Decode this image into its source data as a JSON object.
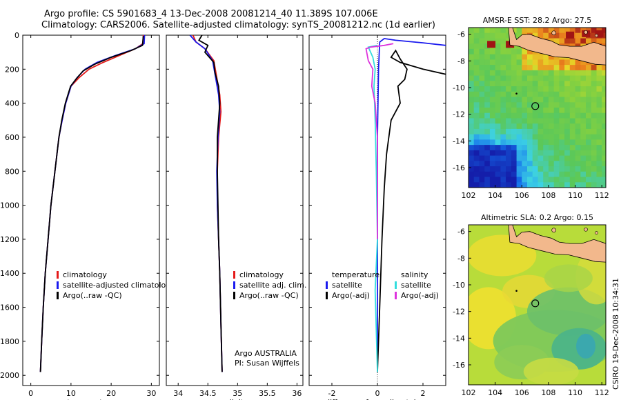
{
  "header": {
    "title_line1": "Argo profile: CS 5901683_4 13-Dec-2008 20081214_40 11.389S 107.006E",
    "title_line2": "Climatology: CARS2006. Satellite-adjusted climatology: synTS_20081212.nc (1d earlier)"
  },
  "footer": {
    "credit": "CSIRO 19-Dec-2008 10:34:31"
  },
  "colors": {
    "red": "#e41a1a",
    "blue": "#1a1aee",
    "black": "#000000",
    "cyan": "#33dddd",
    "magenta": "#dd33dd",
    "land": "#f2b88c"
  },
  "chart_data": [
    {
      "type": "line",
      "xlabel": "temperature",
      "xlim": [
        -2,
        32
      ],
      "xticks": [
        0,
        10,
        20,
        30
      ],
      "ylim": [
        0,
        2060
      ],
      "yticks": [
        0,
        200,
        400,
        600,
        800,
        1000,
        1200,
        1400,
        1600,
        1800,
        2000
      ],
      "y_reversed": true,
      "legend": [
        "climatology",
        "satellite-adjusted climatology",
        "Argo(..raw -QC)"
      ],
      "series": [
        {
          "name": "climatology",
          "color": "red",
          "x": [
            28.0,
            27.9,
            26.0,
            22.0,
            18.0,
            14.5,
            12.0,
            10.0,
            8.7,
            7.8,
            7.0,
            6.0,
            5.0,
            4.3,
            3.6,
            3.1,
            2.7,
            2.4
          ],
          "y": [
            0,
            50,
            80,
            120,
            160,
            200,
            250,
            300,
            400,
            500,
            600,
            800,
            1000,
            1200,
            1400,
            1600,
            1800,
            1980
          ]
        },
        {
          "name": "satellite-adjusted climatology",
          "color": "blue",
          "x": [
            28.3,
            28.2,
            26.0,
            21.0,
            16.5,
            13.5,
            11.5,
            10.0,
            8.7,
            7.8,
            7.0,
            6.0,
            5.0,
            4.3,
            3.6,
            3.1,
            2.7,
            2.4
          ],
          "y": [
            0,
            50,
            80,
            120,
            160,
            200,
            250,
            300,
            400,
            500,
            600,
            800,
            1000,
            1200,
            1400,
            1600,
            1800,
            1980
          ]
        },
        {
          "name": "Argo(..raw -QC)",
          "color": "black",
          "x": [
            28.0,
            27.8,
            25.0,
            20.0,
            16.0,
            13.0,
            11.2,
            9.9,
            8.6,
            7.7,
            7.0,
            6.0,
            5.0,
            4.3,
            3.6,
            3.1,
            2.7,
            2.4
          ],
          "y": [
            5,
            60,
            90,
            130,
            170,
            210,
            260,
            300,
            400,
            500,
            600,
            800,
            1000,
            1200,
            1400,
            1600,
            1800,
            1980
          ]
        }
      ]
    },
    {
      "type": "line",
      "xlabel": "salinity",
      "xlim": [
        33.8,
        36.1
      ],
      "xticks": [
        34,
        34.5,
        35,
        35.5,
        36
      ],
      "ylim": [
        0,
        2060
      ],
      "y_reversed": true,
      "legend": [
        "climatology",
        "satellite adj. clim.",
        "Argo(..raw -QC)"
      ],
      "annotation": [
        "Argo AUSTRALIA",
        "PI: Susan Wijffels"
      ],
      "series": [
        {
          "name": "climatology",
          "color": "red",
          "x": [
            34.25,
            34.3,
            34.45,
            34.6,
            34.65,
            34.7,
            34.72,
            34.68,
            34.66,
            34.66,
            34.68,
            34.7,
            34.72,
            34.74
          ],
          "y": [
            0,
            40,
            80,
            150,
            250,
            350,
            450,
            600,
            800,
            1000,
            1200,
            1400,
            1700,
            1980
          ]
        },
        {
          "name": "satellite adj. clim.",
          "color": "blue",
          "x": [
            34.2,
            34.3,
            34.45,
            34.58,
            34.63,
            34.68,
            34.7,
            34.67,
            34.65,
            34.66,
            34.68,
            34.7,
            34.72,
            34.74
          ],
          "y": [
            0,
            40,
            80,
            150,
            250,
            350,
            450,
            600,
            800,
            1000,
            1200,
            1400,
            1700,
            1980
          ]
        },
        {
          "name": "Argo(..raw -QC)",
          "color": "black",
          "x": [
            34.4,
            34.35,
            34.5,
            34.45,
            34.6,
            34.62,
            34.68,
            34.7,
            34.66,
            34.66,
            34.67,
            34.68,
            34.7,
            34.72,
            34.74
          ],
          "y": [
            0,
            30,
            60,
            100,
            160,
            220,
            300,
            400,
            600,
            800,
            1000,
            1200,
            1400,
            1700,
            1980
          ]
        }
      ]
    },
    {
      "type": "line",
      "xlabel": "difference from climatology",
      "xlim": [
        -3,
        3
      ],
      "xticks": [
        -2,
        0,
        2
      ],
      "ylim": [
        0,
        2060
      ],
      "y_reversed": true,
      "legend_left": {
        "header": "temperature",
        "items": [
          "satellite",
          "Argo(-adj)"
        ]
      },
      "legend_right": {
        "header": "salinity",
        "items": [
          "satellite",
          "Argo(-adj)"
        ]
      },
      "series": [
        {
          "name": "temperature satellite",
          "color": "blue",
          "x": [
            3.0,
            2.0,
            0.8,
            0.3,
            0.1,
            0.05,
            0.0,
            0.0,
            0.0
          ],
          "y": [
            60,
            45,
            30,
            20,
            40,
            200,
            600,
            1200,
            1980
          ]
        },
        {
          "name": "temperature Argo(-adj)",
          "color": "black",
          "x": [
            3.0,
            2.0,
            1.0,
            0.6,
            0.7,
            0.8,
            1.0,
            1.3,
            1.2,
            0.9,
            1.0,
            0.6,
            0.4,
            0.3,
            0.2,
            0.1,
            0.0
          ],
          "y": [
            230,
            200,
            160,
            130,
            110,
            90,
            140,
            200,
            260,
            300,
            400,
            500,
            700,
            900,
            1200,
            1600,
            1980
          ]
        },
        {
          "name": "salinity satellite",
          "color": "cyan",
          "x": [
            0.0,
            -0.4,
            -0.2,
            -0.1,
            -0.15,
            -0.1,
            -0.05,
            0.0,
            -0.1,
            0.0
          ],
          "y": [
            60,
            70,
            130,
            200,
            300,
            500,
            800,
            1200,
            1500,
            1980
          ]
        },
        {
          "name": "salinity Argo(-adj)",
          "color": "magenta",
          "x": [
            0.7,
            0.3,
            -0.3,
            -0.5,
            -0.4,
            -0.2,
            -0.25,
            -0.1,
            0.0,
            0.0,
            0.0
          ],
          "y": [
            50,
            60,
            70,
            80,
            150,
            200,
            300,
            400,
            600,
            900,
            1200
          ]
        }
      ]
    },
    {
      "type": "heatmap",
      "title": "AMSR-E SST: 28.2  Argo: 27.5",
      "xlim": [
        102,
        112.3
      ],
      "xticks": [
        102,
        104,
        106,
        108,
        110,
        112
      ],
      "ylim": [
        -17.5,
        -5.5
      ],
      "yticks": [
        -6,
        -8,
        -10,
        -12,
        -14,
        -16
      ],
      "argo_position": {
        "lon": 107.006,
        "lat": -11.389
      }
    },
    {
      "type": "heatmap",
      "title": "Altimetric SLA: 0.2  Argo: 0.15",
      "xlim": [
        102,
        112.3
      ],
      "xticks": [
        102,
        104,
        106,
        108,
        110,
        112
      ],
      "ylim": [
        -17.5,
        -5.5
      ],
      "yticks": [
        -6,
        -8,
        -10,
        -12,
        -14,
        -16
      ],
      "argo_position": {
        "lon": 107.006,
        "lat": -11.389
      }
    }
  ]
}
